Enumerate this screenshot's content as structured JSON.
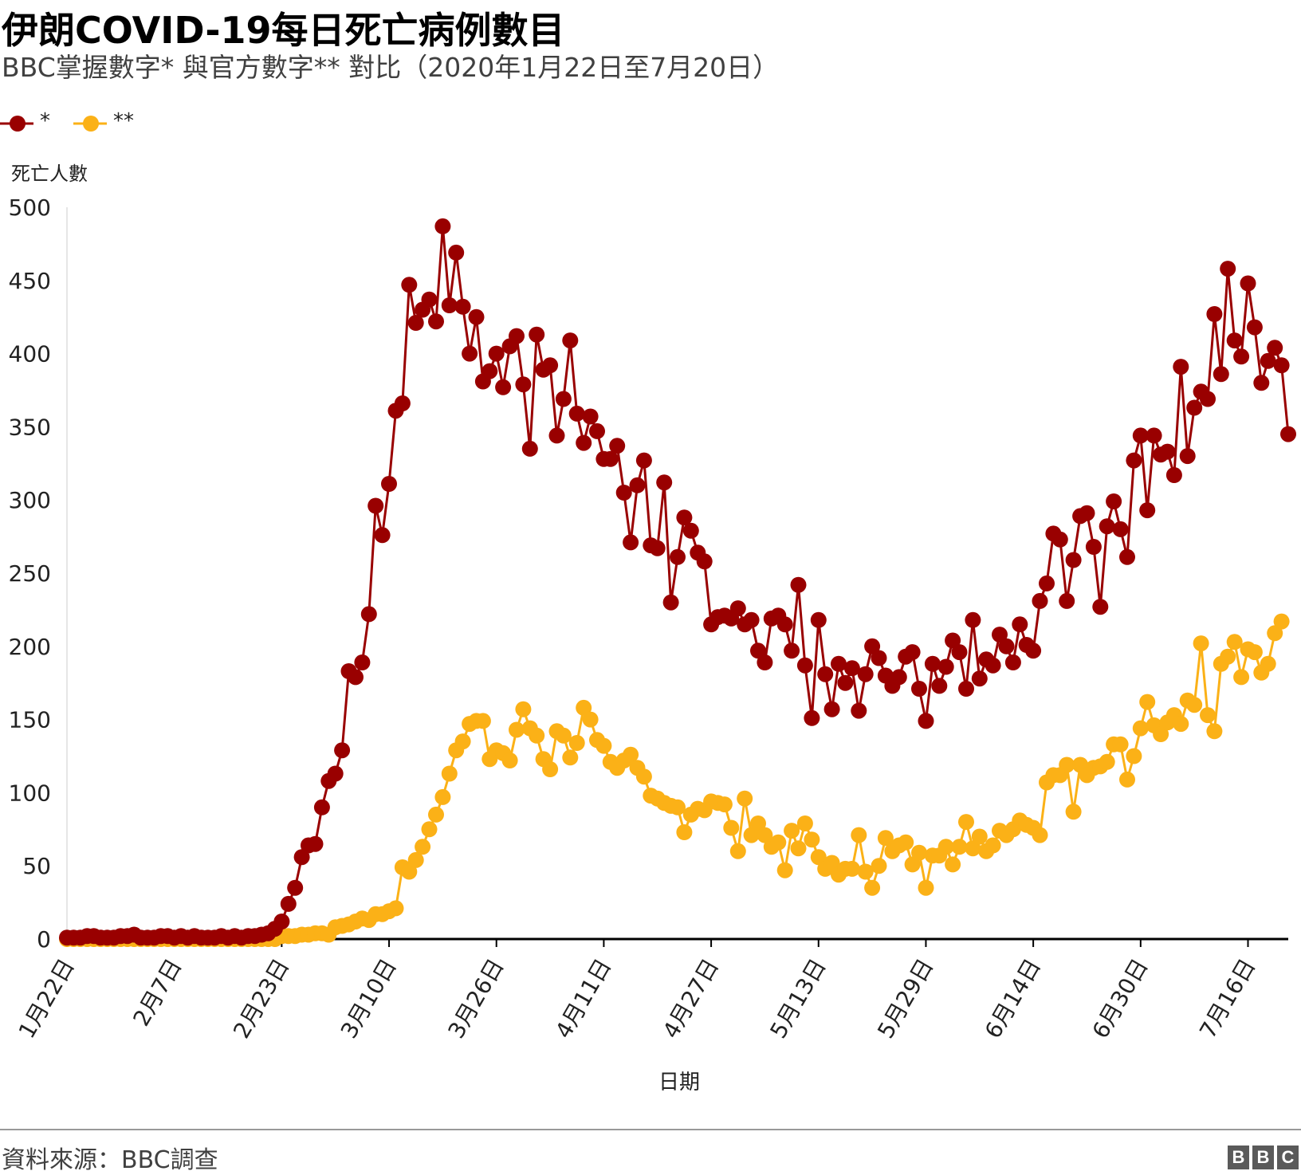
{
  "title": "伊朗COVID-19每日死亡病例數目",
  "subtitle": "BBC掌握數字* 與官方數字** 對比（2020年1月22日至7月20日）",
  "source": "資料來源：BBC調查",
  "logo_text": "BBC",
  "chart_data": {
    "type": "line",
    "xlabel": "日期",
    "ylabel": "死亡人數",
    "ylim": [
      0,
      500
    ],
    "yticks": [
      0,
      50,
      100,
      150,
      200,
      250,
      300,
      350,
      400,
      450,
      500
    ],
    "x_start": "1月22日",
    "x_end": "7月20日",
    "x_tick_labels": [
      "1月22日",
      "2月7日",
      "2月23日",
      "3月10日",
      "3月26日",
      "4月11日",
      "4月27日",
      "5月13日",
      "5月29日",
      "6月14日",
      "6月30日",
      "7月16日"
    ],
    "x_tick_index": [
      0,
      16,
      32,
      48,
      64,
      80,
      96,
      112,
      128,
      144,
      160,
      176
    ],
    "grid": false,
    "legend_position": "top-left",
    "series": [
      {
        "name": "*",
        "color": "#990000",
        "values": [
          1,
          1,
          1,
          2,
          2,
          1,
          1,
          1,
          2,
          2,
          3,
          1,
          1,
          1,
          2,
          2,
          1,
          2,
          1,
          2,
          1,
          1,
          1,
          2,
          1,
          2,
          1,
          2,
          2,
          3,
          4,
          7,
          12,
          24,
          35,
          56,
          64,
          65,
          90,
          108,
          113,
          129,
          183,
          179,
          189,
          222,
          296,
          276,
          311,
          361,
          366,
          447,
          421,
          430,
          437,
          422,
          487,
          433,
          469,
          432,
          400,
          425,
          381,
          388,
          400,
          377,
          405,
          412,
          379,
          335,
          413,
          389,
          392,
          344,
          369,
          409,
          359,
          339,
          357,
          347,
          328,
          328,
          337,
          305,
          271,
          310,
          327,
          269,
          267,
          312,
          230,
          261,
          288,
          279,
          264,
          258,
          215,
          220,
          221,
          219,
          226,
          215,
          218,
          197,
          189,
          219,
          221,
          215,
          197,
          242,
          187,
          151,
          218,
          181,
          157,
          188,
          175,
          185,
          156,
          181,
          200,
          192,
          180,
          173,
          179,
          193,
          196,
          171,
          149,
          188,
          173,
          186,
          204,
          196,
          171,
          218,
          178,
          191,
          187,
          208,
          200,
          189,
          215,
          201,
          197,
          231,
          243,
          277,
          273,
          231,
          259,
          289,
          291,
          268,
          227,
          282,
          299,
          280,
          261,
          327,
          344,
          293,
          344,
          331,
          333,
          317,
          391,
          330,
          363,
          374,
          369,
          427,
          386,
          458,
          409,
          398,
          448,
          418,
          380,
          395,
          404,
          392,
          345
        ]
      },
      {
        "name": "**",
        "color": "#fbb117",
        "values": [
          0,
          0,
          0,
          0,
          0,
          0,
          0,
          0,
          0,
          0,
          0,
          0,
          0,
          0,
          0,
          0,
          0,
          0,
          0,
          0,
          0,
          0,
          0,
          0,
          0,
          0,
          0,
          0,
          0,
          0,
          0,
          0,
          2,
          2,
          2,
          3,
          3,
          4,
          4,
          3,
          8,
          9,
          10,
          12,
          14,
          13,
          17,
          17,
          19,
          21,
          49,
          46,
          54,
          63,
          75,
          85,
          97,
          113,
          129,
          135,
          147,
          149,
          149,
          123,
          129,
          127,
          122,
          143,
          157,
          144,
          139,
          123,
          116,
          142,
          139,
          124,
          134,
          158,
          150,
          136,
          132,
          121,
          117,
          122,
          126,
          117,
          111,
          98,
          96,
          93,
          91,
          90,
          73,
          85,
          89,
          88,
          94,
          93,
          92,
          76,
          60,
          96,
          71,
          79,
          71,
          63,
          66,
          47,
          74,
          62,
          79,
          68,
          56,
          48,
          52,
          44,
          48,
          48,
          71,
          46,
          35,
          50,
          69,
          60,
          64,
          66,
          51,
          59,
          35,
          57,
          57,
          63,
          51,
          63,
          80,
          62,
          70,
          60,
          64,
          74,
          71,
          75,
          81,
          78,
          76,
          71,
          107,
          112,
          112,
          119,
          87,
          119,
          112,
          117,
          118,
          121,
          133,
          133,
          109,
          125,
          144,
          162,
          146,
          140,
          148,
          153,
          147,
          163,
          160,
          202,
          153,
          142,
          188,
          193,
          203,
          179,
          198,
          196,
          182,
          188,
          209,
          217
        ]
      }
    ]
  }
}
